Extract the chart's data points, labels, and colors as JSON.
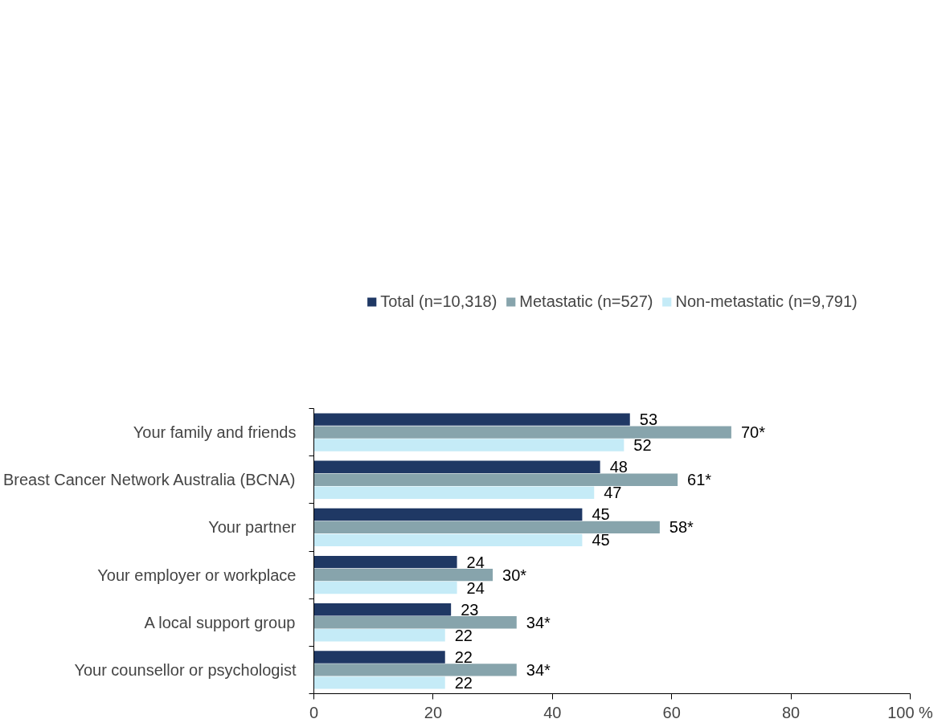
{
  "chart_data": {
    "type": "bar",
    "orientation": "horizontal",
    "categories": [
      "Your family and friends",
      "Breast Cancer Network Australia (BCNA)",
      "Your partner",
      "Your employer or workplace",
      "A local support group",
      "Your counsellor or psychologist"
    ],
    "series": [
      {
        "name": "Total (n=10,318)",
        "color": "#1f3864",
        "values": [
          53,
          48,
          45,
          24,
          23,
          22
        ],
        "value_labels": [
          "53",
          "48",
          "45",
          "24",
          "23",
          "22"
        ]
      },
      {
        "name": "Metastatic (n=527)",
        "color": "#87a4ac",
        "values": [
          70,
          61,
          58,
          30,
          34,
          34
        ],
        "value_labels": [
          "70*",
          "61*",
          "58*",
          "30*",
          "34*",
          "34*"
        ]
      },
      {
        "name": "Non-metastatic (n=9,791)",
        "color": "#c5ebf7",
        "values": [
          52,
          47,
          45,
          24,
          22,
          22
        ],
        "value_labels": [
          "52",
          "47",
          "45",
          "24",
          "22",
          "22"
        ]
      }
    ],
    "xlim": [
      0,
      100
    ],
    "xticks": [
      0,
      20,
      40,
      60,
      80,
      {
        "value": 100,
        "label": "100 %"
      }
    ],
    "grid": false,
    "legend": "top"
  }
}
